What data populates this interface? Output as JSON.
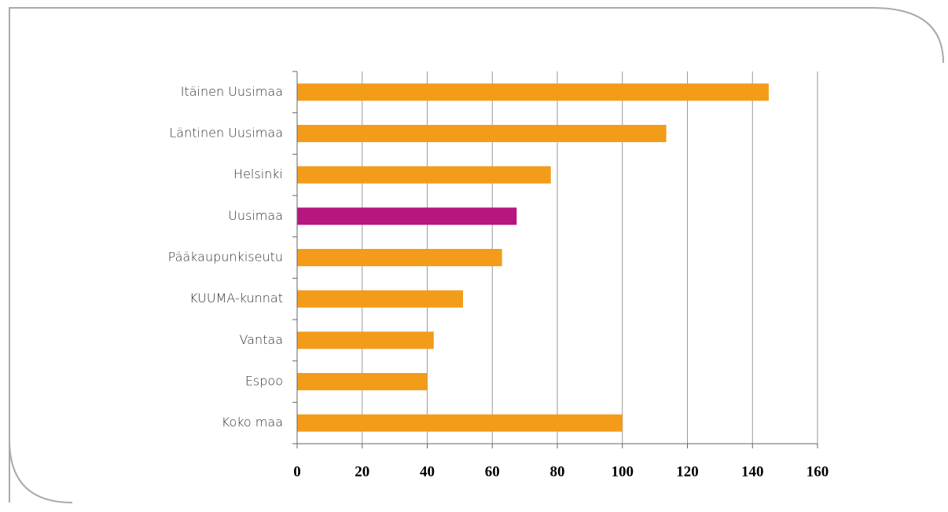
{
  "chart_data": {
    "type": "barh",
    "categories": [
      "Itäinen Uusimaa",
      "Läntinen Uusimaa",
      "Helsinki",
      "Uusimaa",
      "Pääkaupunkiseutu",
      "KUUMA-kunnat",
      "Vantaa",
      "Espoo",
      "Koko maa"
    ],
    "values": [
      145,
      113.5,
      78,
      67.5,
      63,
      51,
      42,
      40,
      100
    ],
    "colors": [
      "#f39c1a",
      "#f39c1a",
      "#f39c1a",
      "#b5177f",
      "#f39c1a",
      "#f39c1a",
      "#f39c1a",
      "#f39c1a",
      "#f39c1a"
    ],
    "xlim": [
      0,
      160
    ],
    "xticks": [
      0,
      20,
      40,
      60,
      80,
      100,
      120,
      140,
      160
    ],
    "grid": true
  }
}
